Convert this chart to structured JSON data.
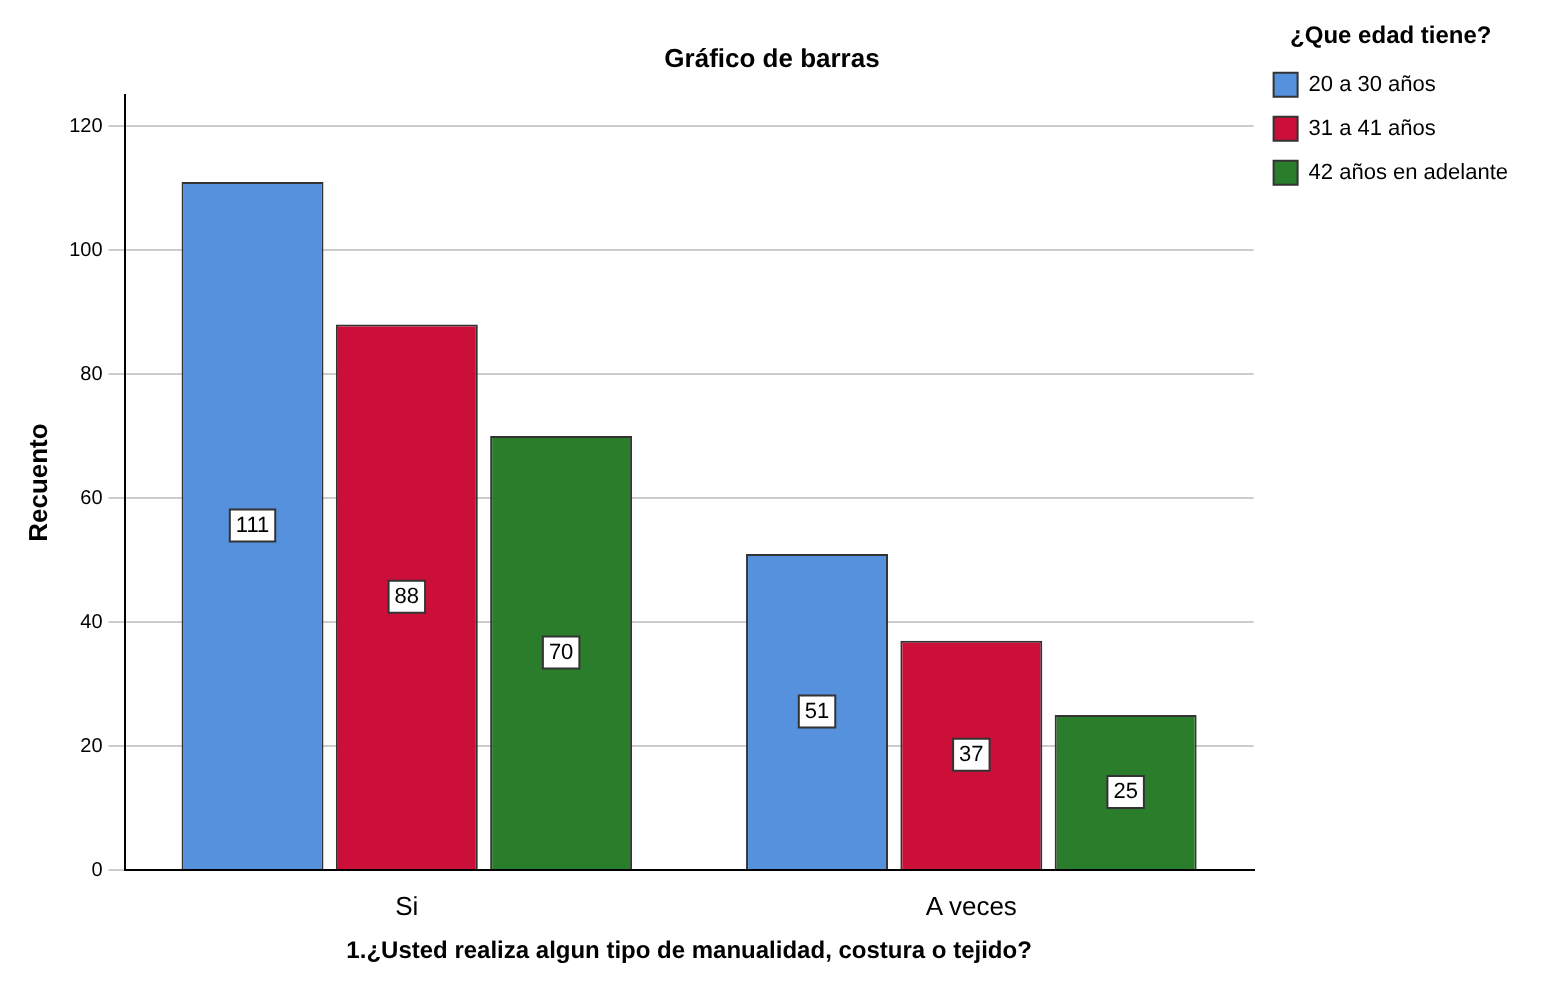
{
  "chart_data": {
    "type": "bar",
    "title": "Gráfico de barras",
    "xlabel": "1.¿Usted realiza algun tipo de manualidad, costura o tejido?",
    "ylabel": "Recuento",
    "legend_title": "¿Que edad tiene?",
    "categories": [
      "Si",
      "A veces"
    ],
    "series": [
      {
        "name": "20 a 30 años",
        "color": "#5591dc",
        "values": [
          111,
          51
        ]
      },
      {
        "name": "31 a 41 años",
        "color": "#cc0f38",
        "values": [
          88,
          37
        ]
      },
      {
        "name": "42 años en adelante",
        "color": "#2a7d2a",
        "values": [
          70,
          25
        ]
      }
    ],
    "ylim": [
      0,
      125
    ],
    "yticks": [
      0,
      20,
      40,
      60,
      80,
      100,
      120
    ],
    "grid": "y",
    "legend": "right",
    "data_labels": true
  }
}
